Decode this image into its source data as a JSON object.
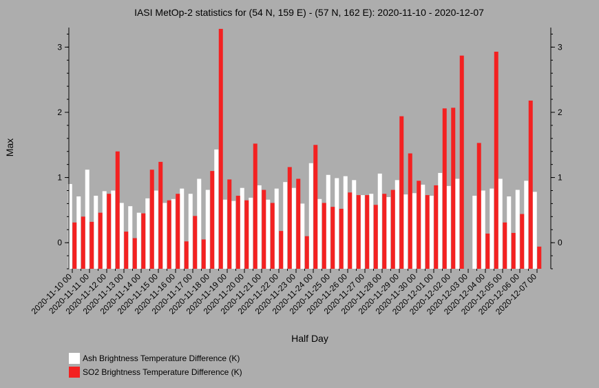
{
  "chart_data": {
    "type": "bar",
    "title": "IASI MetOp-2 statistics for (54 N, 159 E) - (57 N, 162 E): 2020-11-10 - 2020-12-07",
    "xlabel": "Half Day",
    "ylabel": "Max",
    "ylim": [
      -0.4,
      3.3
    ],
    "yticks": [
      0,
      1,
      2,
      3
    ],
    "tick_labels": [
      "2020-11-10 00",
      "2020-11-11 00",
      "2020-11-12 00",
      "2020-11-13 00",
      "2020-11-14 00",
      "2020-11-15 00",
      "2020-11-16 00",
      "2020-11-17 00",
      "2020-11-18 00",
      "2020-11-19 00",
      "2020-11-20 00",
      "2020-11-21 00",
      "2020-11-22 00",
      "2020-11-23 00",
      "2020-11-24 00",
      "2020-11-25 00",
      "2020-11-26 00",
      "2020-11-27 00",
      "2020-11-28 00",
      "2020-11-29 00",
      "2020-11-30 00",
      "2020-12-01 00",
      "2020-12-02 00",
      "2020-12-03 00",
      "2020-12-04 00",
      "2020-12-05 00",
      "2020-12-06 00",
      "2020-12-07 00"
    ],
    "x_start": "2020-11-10 00",
    "x_step_hours": 12,
    "legend_placement": "bottom-left",
    "grid": false,
    "series": [
      {
        "name": "Ash Brightness Temperature Difference (K)",
        "color": "#ffffff",
        "values": [
          0.9,
          0.71,
          1.12,
          0.72,
          0.79,
          0.8,
          0.61,
          0.56,
          0.46,
          0.68,
          0.8,
          0.61,
          0.67,
          0.83,
          0.75,
          0.98,
          0.81,
          1.43,
          0.66,
          0.64,
          0.84,
          0.69,
          0.88,
          0.66,
          0.83,
          0.93,
          0.84,
          0.6,
          1.22,
          0.67,
          1.04,
          0.99,
          1.02,
          0.96,
          0.73,
          0.75,
          1.06,
          0.7,
          0.96,
          0.74,
          0.76,
          0.89,
          0.72,
          1.07,
          0.87,
          0.98,
          null,
          0.72,
          0.8,
          0.83,
          0.98,
          0.71,
          0.81,
          0.95,
          0.78
        ]
      },
      {
        "name": "SO2 Brightness Temperature Difference (K)",
        "color": "#f32121",
        "values": [
          0.31,
          0.4,
          0.32,
          0.46,
          0.75,
          1.4,
          0.17,
          0.07,
          0.45,
          1.12,
          1.24,
          0.65,
          0.75,
          0.02,
          0.41,
          0.05,
          1.1,
          3.28,
          0.97,
          0.72,
          0.65,
          1.52,
          0.81,
          0.61,
          0.18,
          1.16,
          0.98,
          0.1,
          1.5,
          0.61,
          0.55,
          0.52,
          0.77,
          0.73,
          0.73,
          0.58,
          0.75,
          0.81,
          1.94,
          1.37,
          0.95,
          0.73,
          0.88,
          2.06,
          2.07,
          2.87,
          null,
          1.53,
          0.14,
          2.93,
          0.31,
          0.15,
          0.44,
          2.18,
          -0.06
        ]
      }
    ]
  }
}
